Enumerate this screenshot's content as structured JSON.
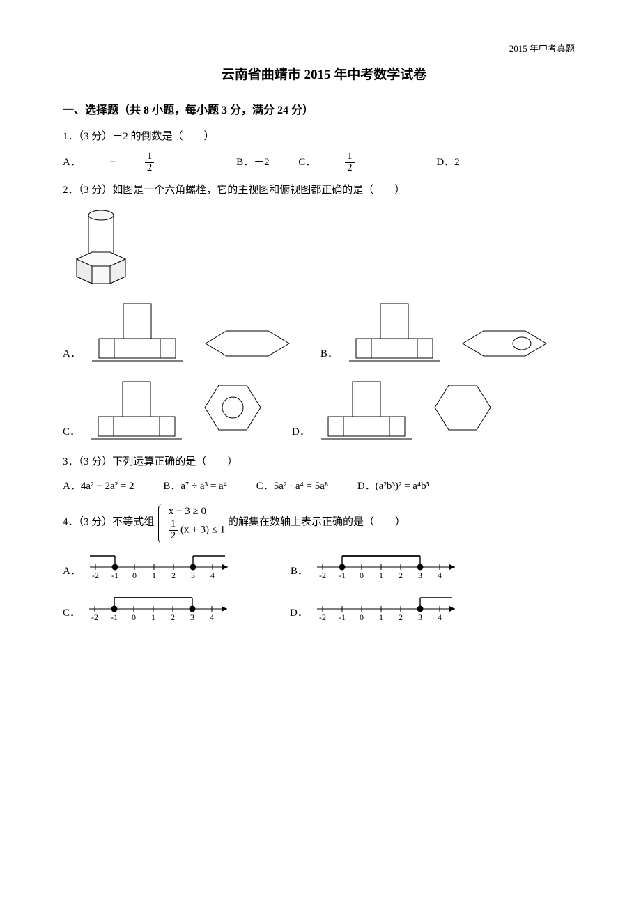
{
  "header_right": "2015 年中考真题",
  "title": "云南省曲靖市 2015 年中考数学试卷",
  "section1": "一、选择题（共 8 小题，每小题 3 分，满分 24 分）",
  "q1": {
    "stem": "1．（3 分）－2 的倒数是（　　）",
    "A_prefix": "A．",
    "A_neg": "−",
    "B": "B．－2",
    "C_prefix": "C．",
    "D": "D．2",
    "frac_n": "1",
    "frac_d": "2"
  },
  "q2": {
    "stem": "2．（3 分）如图是一个六角螺栓，它的主视图和俯视图都正确的是（　　）",
    "A": "A．",
    "B": "B．",
    "C": "C．",
    "D": "D．"
  },
  "q3": {
    "stem": "3．（3 分）下列运算正确的是（　　）",
    "A": "A．4a² − 2a² = 2",
    "B": "B．a⁷ ÷ a³ = a⁴",
    "C": "C．5a² · a⁴ = 5a⁸",
    "D": "D．(a²b³)² = a⁴b⁵"
  },
  "q4": {
    "stem_pre": "4．（3 分）不等式组",
    "line1": "x − 3 ≥ 0",
    "line2_pre": "",
    "frac_n": "1",
    "frac_d": "2",
    "line2_post": "(x + 3) ≤ 1",
    "stem_post": "的解集在数轴上表示正确的是（　　）",
    "A": "A．",
    "B": "B．",
    "C": "C．",
    "D": "D．",
    "ticks": [
      "-2",
      "-1",
      "0",
      "1",
      "2",
      "3",
      "4"
    ]
  },
  "colors": {
    "ink": "#000000",
    "bg": "#ffffff",
    "light": "#e9e9e9"
  }
}
